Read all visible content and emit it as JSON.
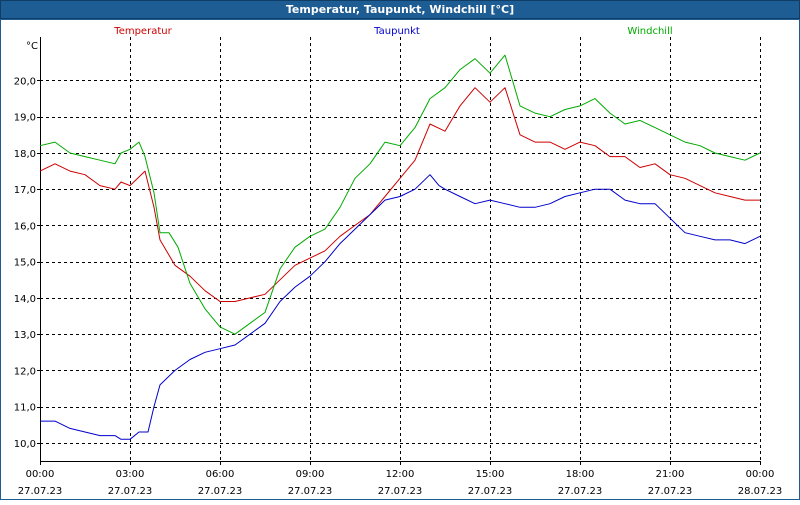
{
  "window": {
    "title": "Temperatur, Taupunkt, Windchill [°C]",
    "frame_color": "#1e5c94"
  },
  "chart_data": {
    "type": "line",
    "title": "Temperatur, Taupunkt, Windchill [°C]",
    "ylabel": "°C",
    "xlabel": "",
    "ylim": [
      9.5,
      21.2
    ],
    "xlim": [
      0,
      24
    ],
    "grid": true,
    "legend_placement": "top",
    "yticks": [
      {
        "value": 10,
        "label": "10,0"
      },
      {
        "value": 11,
        "label": "11,0"
      },
      {
        "value": 12,
        "label": "12,0"
      },
      {
        "value": 13,
        "label": "13,0"
      },
      {
        "value": 14,
        "label": "14,0"
      },
      {
        "value": 15,
        "label": "15,0"
      },
      {
        "value": 16,
        "label": "16,0"
      },
      {
        "value": 17,
        "label": "17,0"
      },
      {
        "value": 18,
        "label": "18,0"
      },
      {
        "value": 19,
        "label": "19,0"
      },
      {
        "value": 20,
        "label": "20,0"
      }
    ],
    "xticks": [
      {
        "value": 0,
        "time": "00:00",
        "date": "27.07.23"
      },
      {
        "value": 3,
        "time": "03:00",
        "date": "27.07.23"
      },
      {
        "value": 6,
        "time": "06:00",
        "date": "27.07.23"
      },
      {
        "value": 9,
        "time": "09:00",
        "date": "27.07.23"
      },
      {
        "value": 12,
        "time": "12:00",
        "date": "27.07.23"
      },
      {
        "value": 15,
        "time": "15:00",
        "date": "27.07.23"
      },
      {
        "value": 18,
        "time": "18:00",
        "date": "27.07.23"
      },
      {
        "value": 21,
        "time": "21:00",
        "date": "27.07.23"
      },
      {
        "value": 24,
        "time": "00:00",
        "date": "28.07.23"
      }
    ],
    "series": [
      {
        "name": "Temperatur",
        "color": "#cc0000",
        "x": [
          0,
          0.5,
          1,
          1.5,
          2,
          2.5,
          2.7,
          3,
          3.5,
          3.8,
          4,
          4.5,
          5,
          5.5,
          6,
          6.5,
          7,
          7.5,
          8,
          8.5,
          9,
          9.5,
          10,
          10.5,
          11,
          11.5,
          12,
          12.5,
          13,
          13.5,
          14,
          14.5,
          15,
          15.5,
          16,
          16.5,
          17,
          17.5,
          18,
          18.5,
          19,
          19.5,
          20,
          20.5,
          21,
          21.5,
          22,
          22.5,
          23,
          23.5,
          24
        ],
        "values": [
          17.5,
          17.7,
          17.5,
          17.4,
          17.1,
          17.0,
          17.2,
          17.1,
          17.5,
          16.5,
          15.6,
          14.9,
          14.6,
          14.2,
          13.9,
          13.9,
          14.0,
          14.1,
          14.5,
          14.9,
          15.1,
          15.3,
          15.7,
          16.0,
          16.3,
          16.8,
          17.3,
          17.8,
          18.8,
          18.6,
          19.3,
          19.8,
          19.4,
          19.8,
          18.5,
          18.3,
          18.3,
          18.1,
          18.3,
          18.2,
          17.9,
          17.9,
          17.6,
          17.7,
          17.4,
          17.3,
          17.1,
          16.9,
          16.8,
          16.7,
          16.7
        ]
      },
      {
        "name": "Taupunkt",
        "color": "#0000cc",
        "x": [
          0,
          0.5,
          1,
          1.5,
          2,
          2.5,
          2.7,
          3,
          3.3,
          3.6,
          3.8,
          4,
          4.5,
          5,
          5.5,
          6,
          6.5,
          7,
          7.5,
          8,
          8.5,
          9,
          9.5,
          10,
          10.5,
          11,
          11.5,
          12,
          12.5,
          13,
          13.3,
          13.5,
          14,
          14.5,
          15,
          15.5,
          16,
          16.5,
          17,
          17.5,
          18,
          18.5,
          19,
          19.5,
          20,
          20.5,
          21,
          21.5,
          22,
          22.5,
          23,
          23.5,
          24
        ],
        "values": [
          10.6,
          10.6,
          10.4,
          10.3,
          10.2,
          10.2,
          10.1,
          10.1,
          10.3,
          10.3,
          11.0,
          11.6,
          12.0,
          12.3,
          12.5,
          12.6,
          12.7,
          13.0,
          13.3,
          13.9,
          14.3,
          14.6,
          15.0,
          15.5,
          15.9,
          16.3,
          16.7,
          16.8,
          17.0,
          17.4,
          17.1,
          17.0,
          16.8,
          16.6,
          16.7,
          16.6,
          16.5,
          16.5,
          16.6,
          16.8,
          16.9,
          17.0,
          17.0,
          16.7,
          16.6,
          16.6,
          16.2,
          15.8,
          15.7,
          15.6,
          15.6,
          15.5,
          15.7
        ]
      },
      {
        "name": "Windchill",
        "color": "#00aa00",
        "x": [
          0,
          0.5,
          1,
          1.5,
          2,
          2.5,
          2.7,
          3,
          3.3,
          3.5,
          3.8,
          4,
          4.3,
          4.6,
          5,
          5.5,
          6,
          6.5,
          7,
          7.5,
          8,
          8.5,
          9,
          9.5,
          10,
          10.5,
          11,
          11.5,
          12,
          12.5,
          13,
          13.5,
          14,
          14.5,
          15,
          15.5,
          16,
          16.5,
          17,
          17.5,
          18,
          18.5,
          19,
          19.5,
          20,
          20.5,
          21,
          21.5,
          22,
          22.5,
          23,
          23.5,
          24
        ],
        "values": [
          18.2,
          18.3,
          18.0,
          17.9,
          17.8,
          17.7,
          18.0,
          18.1,
          18.3,
          17.9,
          16.9,
          15.8,
          15.8,
          15.4,
          14.4,
          13.7,
          13.2,
          13.0,
          13.3,
          13.6,
          14.8,
          15.4,
          15.7,
          15.9,
          16.5,
          17.3,
          17.7,
          18.3,
          18.2,
          18.7,
          19.5,
          19.8,
          20.3,
          20.6,
          20.2,
          20.7,
          19.3,
          19.1,
          19.0,
          19.2,
          19.3,
          19.5,
          19.1,
          18.8,
          18.9,
          18.7,
          18.5,
          18.3,
          18.2,
          18.0,
          17.9,
          17.8,
          18.0
        ]
      }
    ]
  }
}
